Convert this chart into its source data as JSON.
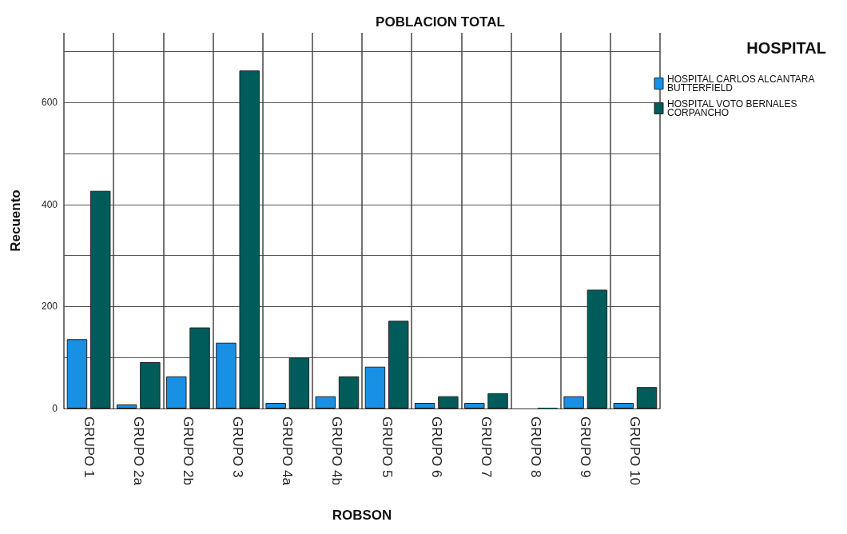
{
  "chart_data": {
    "type": "bar",
    "title": "POBLACION TOTAL",
    "xlabel": "ROBSON",
    "ylabel": "Recuento",
    "legend_title": "HOSPITAL",
    "categories": [
      "GRUPO 1",
      "GRUPO 2a",
      "GRUPO 2b",
      "GRUPO 3",
      "GRUPO 4a",
      "GRUPO 4b",
      "GRUPO 5",
      "GRUPO 6",
      "GRUPO 7",
      "GRUPO 8",
      "GRUPO 9",
      "GRUPO 10"
    ],
    "series": [
      {
        "name": "HOSPITAL CARLOS ALCANTARA BUTTERFIELD",
        "color": "#1790e6",
        "values": [
          136,
          8,
          63,
          129,
          11,
          24,
          82,
          11,
          11,
          0,
          24,
          11
        ]
      },
      {
        "name": "HOSPITAL VOTO BERNALES CORPANCHO",
        "color": "#005c5a",
        "values": [
          427,
          91,
          159,
          663,
          100,
          63,
          172,
          24,
          30,
          1,
          233,
          42
        ]
      }
    ],
    "ylim": [
      0,
      737
    ],
    "yticks": [
      0,
      {
        "value": 100,
        "label": null
      },
      200,
      {
        "value": 300,
        "label": null
      },
      400,
      {
        "value": 500,
        "label": null
      },
      600,
      {
        "value": 700,
        "label": null
      }
    ],
    "grid": true,
    "legend": "top right"
  }
}
